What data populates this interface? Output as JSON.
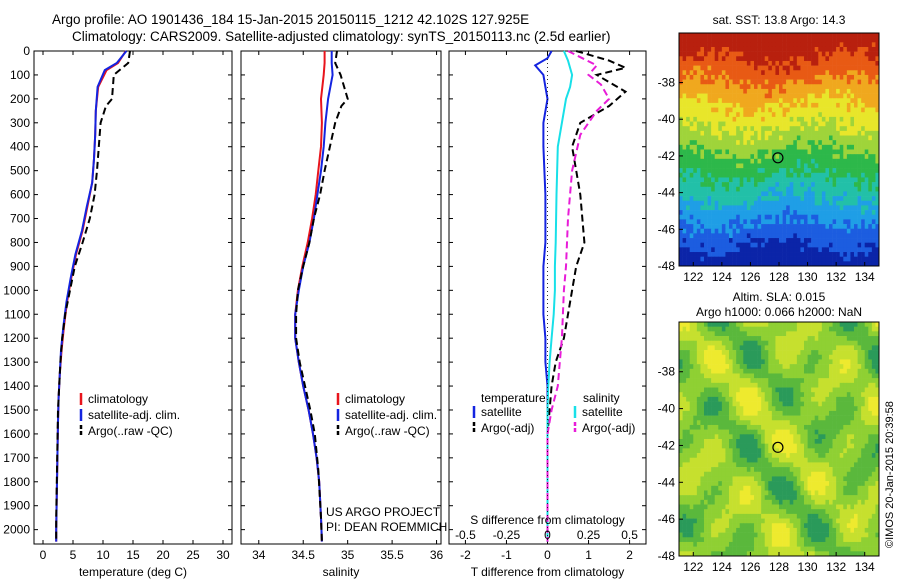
{
  "header": {
    "line1": "Argo profile: AO 1901436_184 15-Jan-2015 20150115_1212 42.102S 127.925E",
    "line2": "Climatology: CARS2009. Satellite-adjusted climatology: synTS_20150113.nc (2.5d earlier)"
  },
  "colors": {
    "climatology": "#e8141c",
    "satellite": "#1424e0",
    "argo": "#000000",
    "sal_satellite": "#18e0e8",
    "sal_argo": "#e81cd8"
  },
  "chart_data": [
    {
      "type": "line",
      "name": "temperature-profile",
      "xlabel": "temperature (deg C)",
      "ylabel": "",
      "xlim": [
        -1.5,
        31.5
      ],
      "ylim": [
        2060,
        0
      ],
      "xticks": [
        0,
        5,
        10,
        15,
        20,
        25,
        30
      ],
      "yticks": [
        0,
        100,
        200,
        300,
        400,
        500,
        600,
        700,
        800,
        900,
        1000,
        1100,
        1200,
        1300,
        1400,
        1500,
        1600,
        1700,
        1800,
        1900,
        2000
      ],
      "legend": [
        "climatology",
        "satellite-adj. clim.",
        "Argo(..raw -QC)"
      ],
      "series": [
        {
          "name": "climatology",
          "style": "solid",
          "color_key": "climatology",
          "x": [
            13.8,
            12.5,
            10.6,
            9.2,
            8.8,
            8.7,
            8.5,
            8.2,
            7.4,
            6.6,
            5.5,
            4.7,
            4.0,
            3.5,
            3.1,
            2.8,
            2.6,
            2.5,
            2.4,
            2.3,
            2.2,
            2.2
          ],
          "y": [
            0,
            50,
            80,
            150,
            250,
            350,
            450,
            550,
            650,
            750,
            850,
            950,
            1050,
            1150,
            1250,
            1350,
            1450,
            1550,
            1700,
            1850,
            2000,
            2050
          ]
        },
        {
          "name": "satellite-adj. clim.",
          "style": "solid",
          "color_key": "satellite",
          "x": [
            13.9,
            12.3,
            10.3,
            9.1,
            8.8,
            8.7,
            8.5,
            8.2,
            7.3,
            6.5,
            5.4,
            4.6,
            3.9,
            3.4,
            3.0,
            2.8,
            2.6,
            2.5,
            2.4,
            2.3,
            2.2,
            2.2
          ],
          "y": [
            0,
            50,
            80,
            150,
            250,
            350,
            450,
            550,
            650,
            750,
            850,
            950,
            1050,
            1150,
            1250,
            1350,
            1450,
            1550,
            1700,
            1850,
            2000,
            2050
          ]
        },
        {
          "name": "Argo(..raw -QC)",
          "style": "dashed",
          "color_key": "argo",
          "x": [
            14.5,
            14.2,
            11.8,
            11.5,
            10.5,
            9.6,
            9.3,
            9.0,
            8.6,
            7.8,
            6.6,
            5.3,
            4.5,
            3.7,
            3.2,
            2.9,
            2.7,
            2.5,
            2.4,
            2.3,
            2.2,
            2.2
          ],
          "y": [
            0,
            50,
            100,
            200,
            230,
            300,
            400,
            500,
            600,
            700,
            800,
            900,
            1000,
            1100,
            1200,
            1300,
            1400,
            1500,
            1650,
            1800,
            1950,
            2050
          ]
        }
      ]
    },
    {
      "type": "line",
      "name": "salinity-profile",
      "xlabel": "salinity",
      "ylabel": "",
      "xlim": [
        33.8,
        36.05
      ],
      "ylim": [
        2060,
        0
      ],
      "xticks": [
        34,
        34.5,
        35,
        35.5,
        36
      ],
      "xticklabels": [
        "34",
        "34.5",
        "35",
        "35.5",
        "36"
      ],
      "legend": [
        "climatology",
        "satellite-adj. clim.",
        "Argo(..raw -QC)"
      ],
      "annotations": [
        "US ARGO PROJECT",
        "PI: DEAN ROEMMICH"
      ],
      "series": [
        {
          "name": "climatology",
          "style": "solid",
          "color_key": "climatology",
          "x": [
            34.74,
            34.74,
            34.73,
            34.7,
            34.71,
            34.7,
            34.67,
            34.64,
            34.6,
            34.55,
            34.49,
            34.44,
            34.41,
            34.41,
            34.45,
            34.5,
            34.56,
            34.61,
            34.65,
            34.68,
            34.7,
            34.71
          ],
          "y": [
            0,
            50,
            100,
            200,
            300,
            400,
            500,
            600,
            700,
            800,
            900,
            1000,
            1100,
            1200,
            1300,
            1400,
            1500,
            1600,
            1700,
            1800,
            1950,
            2050
          ]
        },
        {
          "name": "satellite-adj. clim.",
          "style": "solid",
          "color_key": "satellite",
          "x": [
            34.82,
            34.82,
            34.83,
            34.78,
            34.75,
            34.73,
            34.7,
            34.66,
            34.62,
            34.57,
            34.5,
            34.45,
            34.41,
            34.41,
            34.45,
            34.5,
            34.56,
            34.61,
            34.65,
            34.68,
            34.7,
            34.71
          ],
          "y": [
            0,
            50,
            100,
            200,
            300,
            400,
            500,
            600,
            700,
            800,
            900,
            1000,
            1100,
            1200,
            1300,
            1400,
            1500,
            1600,
            1700,
            1800,
            1950,
            2050
          ]
        },
        {
          "name": "Argo(..raw -QC)",
          "style": "dashed",
          "color_key": "argo",
          "x": [
            34.88,
            34.86,
            34.92,
            35.0,
            34.93,
            34.86,
            34.8,
            34.74,
            34.69,
            34.62,
            34.57,
            34.5,
            34.44,
            34.42,
            34.42,
            34.46,
            34.52,
            34.58,
            34.63,
            34.67,
            34.7,
            34.71
          ],
          "y": [
            0,
            50,
            100,
            200,
            230,
            300,
            400,
            500,
            600,
            700,
            800,
            900,
            1000,
            1100,
            1200,
            1300,
            1400,
            1500,
            1600,
            1750,
            1950,
            2050
          ]
        }
      ]
    },
    {
      "type": "line",
      "name": "difference-profile",
      "xlabel": "T difference from climatology",
      "xlabel_top": "S difference from climatology",
      "xlim": [
        -2.4,
        2.4
      ],
      "ylim": [
        2060,
        0
      ],
      "xticks_bottom": [
        -2,
        -1,
        0,
        1,
        2
      ],
      "xticks_top": [
        -0.5,
        -0.25,
        0,
        0.25,
        0.5
      ],
      "xticks_top_labels": [
        "-0.5",
        "-0.25",
        "0",
        "0.25",
        "0.5"
      ],
      "legend_groups": [
        {
          "title": "temperature",
          "items": [
            "satellite",
            "Argo(-adj)"
          ]
        },
        {
          "title": "salinity",
          "items": [
            "satellite",
            "Argo(-adj)"
          ]
        }
      ],
      "series": [
        {
          "name": "temperature satellite",
          "style": "solid",
          "color_key": "satellite",
          "x": [
            0.1,
            0.0,
            -0.3,
            -0.1,
            -0.05,
            0.0,
            -0.1,
            -0.1,
            -0.05,
            -0.05,
            -0.1,
            -0.1,
            -0.1,
            -0.05,
            -0.05,
            0.0,
            0.0,
            0.0,
            0.0,
            0.0,
            0.0
          ],
          "y": [
            0,
            30,
            60,
            100,
            150,
            200,
            300,
            400,
            600,
            800,
            900,
            1000,
            1100,
            1200,
            1300,
            1400,
            1500,
            1600,
            1800,
            1950,
            2050
          ]
        },
        {
          "name": "temperature Argo(-adj)",
          "style": "dashed",
          "color_key": "argo",
          "x": [
            0.7,
            1.5,
            1.9,
            1.2,
            1.9,
            1.5,
            0.8,
            0.6,
            0.8,
            0.9,
            0.7,
            0.6,
            0.5,
            0.4,
            0.2,
            0.1,
            0.05,
            0.0,
            0.0,
            0.0,
            0.0
          ],
          "y": [
            0,
            40,
            70,
            100,
            170,
            230,
            300,
            400,
            600,
            800,
            900,
            1000,
            1100,
            1200,
            1300,
            1400,
            1500,
            1600,
            1800,
            1950,
            2050
          ]
        },
        {
          "name": "salinity satellite",
          "style": "solid",
          "color_key": "sal_satellite",
          "x": [
            0.4,
            0.5,
            0.6,
            0.55,
            0.45,
            0.35,
            0.25,
            0.22,
            0.2,
            0.18,
            0.18,
            0.15,
            0.1,
            0.05,
            0.02,
            0.0,
            0.0,
            0.0,
            0.0
          ],
          "y": [
            0,
            40,
            100,
            150,
            200,
            300,
            400,
            600,
            800,
            900,
            1000,
            1100,
            1200,
            1300,
            1400,
            1500,
            1600,
            1800,
            2050
          ]
        },
        {
          "name": "salinity Argo(-adj)",
          "style": "dashed",
          "color_key": "sal_argo",
          "x": [
            0.5,
            1.2,
            1.0,
            1.3,
            1.5,
            1.2,
            0.8,
            0.6,
            0.5,
            0.45,
            0.4,
            0.35,
            0.3,
            0.25,
            0.1,
            0.0,
            0.0,
            0.0
          ],
          "y": [
            0,
            60,
            100,
            140,
            200,
            250,
            350,
            500,
            700,
            900,
            1000,
            1200,
            1300,
            1400,
            1500,
            1600,
            1800,
            2050
          ]
        }
      ]
    },
    {
      "type": "heatmap",
      "name": "sst-map",
      "title": "sat. SST: 13.8  Argo: 14.3",
      "xlim": [
        121,
        135
      ],
      "ylim": [
        -48,
        -35.3
      ],
      "xticks": [
        122,
        124,
        126,
        128,
        130,
        132,
        134
      ],
      "yticks": [
        -38,
        -40,
        -42,
        -44,
        -46,
        -48
      ],
      "marker": {
        "lon": 127.925,
        "lat": -42.102
      },
      "palette": [
        "#0b24a8",
        "#1c5de0",
        "#1f9ee6",
        "#22c0a8",
        "#2db84a",
        "#9fd43a",
        "#e8e62a",
        "#f0a81e",
        "#e85a14",
        "#b8200e"
      ],
      "palette_stops": [
        -48,
        -46.6,
        -45.2,
        -43.8,
        -42.6,
        -41.6,
        -40.7,
        -39.6,
        -38.3,
        -36.8
      ]
    },
    {
      "type": "heatmap",
      "name": "sla-map",
      "title_line1": "Altim. SLA: 0.015",
      "title_line2": "Argo h1000: 0.066  h2000: NaN",
      "xlim": [
        121,
        135
      ],
      "ylim": [
        -48,
        -35.3
      ],
      "xticks": [
        122,
        124,
        126,
        128,
        130,
        132,
        134
      ],
      "yticks": [
        -38,
        -40,
        -42,
        -44,
        -46,
        -48
      ],
      "marker": {
        "lon": 127.925,
        "lat": -42.102
      },
      "palette": [
        "#2a9a5a",
        "#5ab83c",
        "#8fd033",
        "#c6e02e",
        "#eeea2e"
      ]
    }
  ],
  "footer": {
    "credit": "©IMOS 20-Jan-2015 20:39:58"
  }
}
